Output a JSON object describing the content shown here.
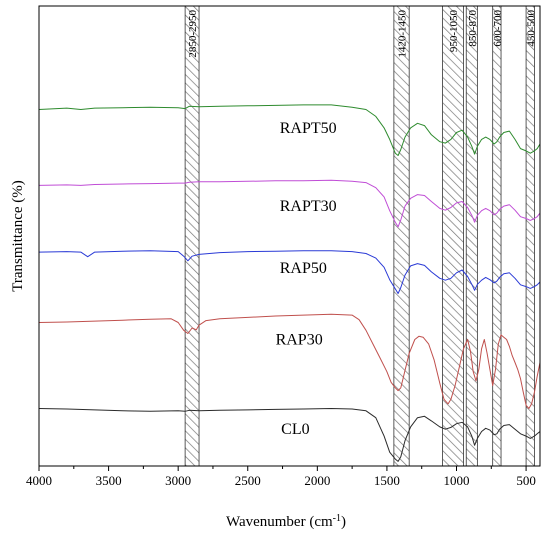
{
  "chart_data": {
    "type": "line",
    "xlabel": "Wavenumber (cm",
    "xlabel_sup": "-1",
    "xlabel_end": ")",
    "ylabel": "Transmittance (%)",
    "xlim": [
      4000,
      400
    ],
    "x_reversed": true,
    "xticks": [
      4000,
      3500,
      3000,
      2500,
      2000,
      1500,
      1000,
      500
    ],
    "grid": false,
    "bands": [
      {
        "label": "2850-2950",
        "from": 2950,
        "to": 2850
      },
      {
        "label": "1420-1450",
        "from": 1450,
        "to": 1340
      },
      {
        "label": "950-1050",
        "from": 1100,
        "to": 950
      },
      {
        "label": "850-870",
        "from": 930,
        "to": 850
      },
      {
        "label": "600-700",
        "from": 740,
        "to": 680
      },
      {
        "label": "450-500",
        "from": 500,
        "to": 440
      }
    ],
    "series": [
      {
        "name": "RAPT50",
        "color": "#2e8b2e",
        "x": [
          4000,
          3800,
          3700,
          3600,
          3400,
          3200,
          3000,
          2950,
          2920,
          2850,
          2700,
          2500,
          2300,
          2100,
          1900,
          1750,
          1650,
          1580,
          1520,
          1480,
          1440,
          1420,
          1400,
          1370,
          1330,
          1280,
          1230,
          1180,
          1120,
          1080,
          1040,
          1000,
          960,
          920,
          890,
          870,
          850,
          820,
          790,
          760,
          730,
          710,
          690,
          660,
          620,
          580,
          540,
          500,
          470,
          440,
          420,
          400
        ],
        "y": [
          77.5,
          77.8,
          77.5,
          77.8,
          77.9,
          78.0,
          77.9,
          77.7,
          78.2,
          78.1,
          78.2,
          78.3,
          78.4,
          78.5,
          78.5,
          78.0,
          77.5,
          76.0,
          73.5,
          71.0,
          68.0,
          67.5,
          68.8,
          71.5,
          73.5,
          74.5,
          74.0,
          72.0,
          70.5,
          70.2,
          71.0,
          72.5,
          73.0,
          71.5,
          69.5,
          67.8,
          69.5,
          71.0,
          71.5,
          71.0,
          70.0,
          70.5,
          71.5,
          72.5,
          72.8,
          71.0,
          69.0,
          68.5,
          68.0,
          68.5,
          69.0,
          70.0
        ]
      },
      {
        "name": "RAPT30",
        "color": "#c04dd6",
        "x": [
          4000,
          3800,
          3700,
          3600,
          3400,
          3200,
          3000,
          2950,
          2920,
          2850,
          2700,
          2500,
          2300,
          2100,
          1900,
          1750,
          1650,
          1580,
          1520,
          1480,
          1440,
          1420,
          1400,
          1370,
          1330,
          1280,
          1230,
          1180,
          1120,
          1080,
          1040,
          1000,
          960,
          920,
          890,
          870,
          850,
          820,
          790,
          760,
          730,
          710,
          690,
          660,
          620,
          580,
          540,
          500,
          470,
          440,
          420,
          400
        ],
        "y": [
          61.0,
          61.1,
          61.0,
          61.2,
          61.3,
          61.4,
          61.5,
          61.5,
          61.7,
          61.8,
          61.8,
          61.9,
          62.0,
          62.0,
          62.1,
          61.9,
          61.6,
          60.5,
          58.5,
          55.5,
          53.0,
          52.0,
          53.5,
          56.5,
          58.2,
          59.0,
          58.8,
          57.5,
          56.0,
          55.6,
          56.2,
          57.2,
          57.5,
          56.2,
          54.5,
          53.0,
          54.5,
          55.5,
          56.0,
          55.5,
          54.6,
          55.0,
          55.8,
          56.5,
          56.8,
          55.6,
          54.2,
          53.8,
          53.4,
          53.8,
          54.2,
          55.0
        ]
      },
      {
        "name": "RAP50",
        "color": "#2a3ad6",
        "x": [
          4000,
          3800,
          3700,
          3650,
          3600,
          3400,
          3200,
          3000,
          2960,
          2930,
          2900,
          2850,
          2700,
          2500,
          2300,
          2100,
          1900,
          1750,
          1650,
          1580,
          1520,
          1480,
          1440,
          1420,
          1400,
          1370,
          1330,
          1280,
          1230,
          1180,
          1120,
          1080,
          1040,
          1000,
          960,
          920,
          890,
          870,
          850,
          820,
          790,
          760,
          730,
          710,
          690,
          660,
          620,
          580,
          540,
          500,
          470,
          440,
          420,
          400
        ],
        "y": [
          46.5,
          46.6,
          46.5,
          45.5,
          46.5,
          46.7,
          46.8,
          46.6,
          45.6,
          44.6,
          45.6,
          46.0,
          46.4,
          46.6,
          46.7,
          46.8,
          46.8,
          46.6,
          46.2,
          45.2,
          43.2,
          40.5,
          38.5,
          37.5,
          38.8,
          41.5,
          43.5,
          44.0,
          43.6,
          42.2,
          40.8,
          40.4,
          40.8,
          42.0,
          42.6,
          41.2,
          39.5,
          38.2,
          39.5,
          40.4,
          41.0,
          40.5,
          39.8,
          40.2,
          41.0,
          41.8,
          42.0,
          40.8,
          39.4,
          39.0,
          38.6,
          39.0,
          39.4,
          40.0
        ]
      },
      {
        "name": "RAP30",
        "color": "#c0504d",
        "x": [
          4000,
          3800,
          3600,
          3400,
          3200,
          3050,
          3000,
          2960,
          2930,
          2900,
          2870,
          2850,
          2800,
          2700,
          2500,
          2300,
          2100,
          1900,
          1750,
          1700,
          1650,
          1600,
          1550,
          1500,
          1470,
          1440,
          1420,
          1400,
          1380,
          1360,
          1340,
          1300,
          1270,
          1240,
          1200,
          1160,
          1120,
          1090,
          1060,
          1040,
          1010,
          980,
          950,
          920,
          900,
          880,
          860,
          840,
          820,
          800,
          780,
          760,
          740,
          720,
          700,
          680,
          660,
          640,
          620,
          600,
          580,
          560,
          540,
          520,
          500,
          480,
          460,
          440,
          420,
          400
        ],
        "y": [
          31.2,
          31.3,
          31.5,
          31.7,
          31.9,
          32.0,
          31.2,
          29.5,
          28.8,
          30.0,
          29.6,
          30.6,
          31.6,
          32.0,
          32.3,
          32.6,
          32.8,
          33.0,
          32.8,
          31.8,
          29.5,
          26.5,
          23.5,
          20.5,
          18.2,
          17.0,
          16.4,
          17.0,
          19.5,
          22.0,
          24.5,
          27.5,
          28.2,
          28.0,
          26.5,
          23.0,
          18.0,
          14.5,
          13.5,
          14.5,
          17.5,
          21.5,
          25.5,
          27.5,
          25.0,
          20.5,
          18.5,
          21.0,
          25.5,
          27.5,
          24.5,
          21.0,
          17.5,
          21.0,
          26.5,
          28.5,
          28.0,
          27.5,
          26.0,
          24.0,
          22.5,
          21.0,
          19.0,
          16.0,
          13.2,
          12.5,
          13.5,
          16.0,
          19.5,
          22.5
        ]
      },
      {
        "name": "CL0",
        "color": "#2b2b2b",
        "x": [
          4000,
          3800,
          3600,
          3400,
          3200,
          3000,
          2950,
          2920,
          2850,
          2700,
          2500,
          2300,
          2100,
          1900,
          1750,
          1650,
          1580,
          1520,
          1480,
          1440,
          1420,
          1400,
          1370,
          1330,
          1280,
          1230,
          1180,
          1120,
          1080,
          1040,
          1000,
          960,
          920,
          890,
          870,
          850,
          820,
          790,
          760,
          730,
          710,
          690,
          660,
          620,
          580,
          540,
          500,
          470,
          440,
          420,
          400
        ],
        "y": [
          12.5,
          12.4,
          12.2,
          12.0,
          11.9,
          12.0,
          11.9,
          12.1,
          12.0,
          12.1,
          12.2,
          12.3,
          12.4,
          12.5,
          12.4,
          12.0,
          10.5,
          6.5,
          3.0,
          1.5,
          1.0,
          2.0,
          5.5,
          8.5,
          10.5,
          10.8,
          9.8,
          8.5,
          8.0,
          8.4,
          9.2,
          9.5,
          8.5,
          6.5,
          4.5,
          6.0,
          7.5,
          8.2,
          7.8,
          6.8,
          7.0,
          8.0,
          8.8,
          9.0,
          8.0,
          7.0,
          6.5,
          6.0,
          6.5,
          7.0,
          7.5
        ]
      }
    ],
    "series_labels": [
      {
        "text": "RAPT50",
        "x": 2270,
        "y": 73.5
      },
      {
        "text": "RAPT30",
        "x": 2270,
        "y": 56.5
      },
      {
        "text": "RAP50",
        "x": 2270,
        "y": 43.0
      },
      {
        "text": "RAP30",
        "x": 2300,
        "y": 27.5
      },
      {
        "text": "CL0",
        "x": 2260,
        "y": 8.0
      }
    ]
  }
}
